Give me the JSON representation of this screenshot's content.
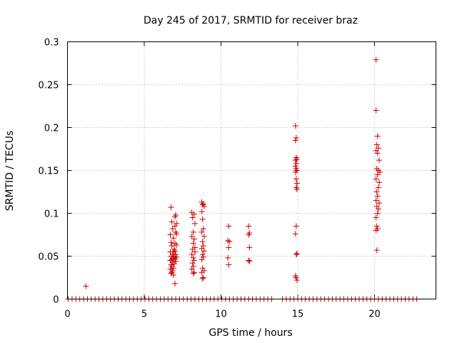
{
  "chart_data": {
    "type": "scatter",
    "title": "Day 245 of 2017, SRMTID for receiver braz",
    "xlabel": "GPS time / hours",
    "ylabel": "SRMTID / TECUs",
    "xlim": [
      0,
      24
    ],
    "ylim": [
      0,
      0.3
    ],
    "x_ticks": [
      0,
      5,
      10,
      15,
      20
    ],
    "x_tick_labels": [
      "0",
      "5",
      "10",
      "15",
      "20"
    ],
    "y_ticks": [
      0,
      0.05,
      0.1,
      0.15,
      0.2,
      0.25,
      0.3
    ],
    "y_tick_labels": [
      "0",
      "0.05",
      "0.1",
      "0.15",
      "0.2",
      "0.25",
      "0.3"
    ],
    "grid": true,
    "marker": "plus",
    "color": "#cc0000",
    "series": [
      {
        "name": "SRMTID",
        "points": [
          [
            1.2,
            0.015
          ],
          [
            6.75,
            0.107
          ],
          [
            6.8,
            0.09
          ],
          [
            6.85,
            0.082
          ],
          [
            6.7,
            0.075
          ],
          [
            6.9,
            0.071
          ],
          [
            6.75,
            0.066
          ],
          [
            6.8,
            0.062
          ],
          [
            6.95,
            0.058
          ],
          [
            6.7,
            0.055
          ],
          [
            6.85,
            0.052
          ],
          [
            6.75,
            0.05
          ],
          [
            6.9,
            0.048
          ],
          [
            6.8,
            0.046
          ],
          [
            6.7,
            0.045
          ],
          [
            6.85,
            0.043
          ],
          [
            6.95,
            0.041
          ],
          [
            6.75,
            0.04
          ],
          [
            6.8,
            0.038
          ],
          [
            6.9,
            0.036
          ],
          [
            6.7,
            0.035
          ],
          [
            6.85,
            0.033
          ],
          [
            6.8,
            0.031
          ],
          [
            6.75,
            0.03
          ],
          [
            6.9,
            0.028
          ],
          [
            7.0,
            0.085
          ],
          [
            7.05,
            0.078
          ],
          [
            7.1,
            0.076
          ],
          [
            7.0,
            0.065
          ],
          [
            7.1,
            0.063
          ],
          [
            7.0,
            0.056
          ],
          [
            7.05,
            0.052
          ],
          [
            7.0,
            0.047
          ],
          [
            7.05,
            0.044
          ],
          [
            7.0,
            0.018
          ],
          [
            7.0,
            0.096
          ],
          [
            7.05,
            0.098
          ],
          [
            7.1,
            0.088
          ],
          [
            6.95,
            0.05
          ],
          [
            7.1,
            0.049
          ],
          [
            6.9,
            0.055
          ],
          [
            8.1,
            0.101
          ],
          [
            8.25,
            0.099
          ],
          [
            8.15,
            0.095
          ],
          [
            8.3,
            0.088
          ],
          [
            8.2,
            0.078
          ],
          [
            8.1,
            0.073
          ],
          [
            8.25,
            0.07
          ],
          [
            8.2,
            0.065
          ],
          [
            8.15,
            0.058
          ],
          [
            8.3,
            0.055
          ],
          [
            8.1,
            0.052
          ],
          [
            8.2,
            0.048
          ],
          [
            8.25,
            0.045
          ],
          [
            8.15,
            0.042
          ],
          [
            8.2,
            0.038
          ],
          [
            8.1,
            0.035
          ],
          [
            8.25,
            0.031
          ],
          [
            8.2,
            0.03
          ],
          [
            8.3,
            0.06
          ],
          [
            8.75,
            0.113
          ],
          [
            8.85,
            0.111
          ],
          [
            8.8,
            0.11
          ],
          [
            8.9,
            0.108
          ],
          [
            8.75,
            0.102
          ],
          [
            8.8,
            0.093
          ],
          [
            8.85,
            0.082
          ],
          [
            8.75,
            0.078
          ],
          [
            8.9,
            0.073
          ],
          [
            8.8,
            0.067
          ],
          [
            8.85,
            0.062
          ],
          [
            8.75,
            0.059
          ],
          [
            8.9,
            0.056
          ],
          [
            8.8,
            0.052
          ],
          [
            8.85,
            0.049
          ],
          [
            8.75,
            0.046
          ],
          [
            8.8,
            0.036
          ],
          [
            8.9,
            0.033
          ],
          [
            8.75,
            0.031
          ],
          [
            8.85,
            0.025
          ],
          [
            8.8,
            0.024
          ],
          [
            10.5,
            0.085
          ],
          [
            10.45,
            0.068
          ],
          [
            10.55,
            0.067
          ],
          [
            10.5,
            0.06
          ],
          [
            10.45,
            0.048
          ],
          [
            10.5,
            0.04
          ],
          [
            11.8,
            0.085
          ],
          [
            11.85,
            0.077
          ],
          [
            11.8,
            0.075
          ],
          [
            11.85,
            0.06
          ],
          [
            11.8,
            0.045
          ],
          [
            11.85,
            0.044
          ],
          [
            14.85,
            0.202
          ],
          [
            14.9,
            0.188
          ],
          [
            14.85,
            0.185
          ],
          [
            14.9,
            0.165
          ],
          [
            14.85,
            0.162
          ],
          [
            14.95,
            0.163
          ],
          [
            14.9,
            0.158
          ],
          [
            14.85,
            0.155
          ],
          [
            14.9,
            0.152
          ],
          [
            14.95,
            0.15
          ],
          [
            14.85,
            0.148
          ],
          [
            14.9,
            0.14
          ],
          [
            14.95,
            0.135
          ],
          [
            14.9,
            0.13
          ],
          [
            14.95,
            0.128
          ],
          [
            14.9,
            0.085
          ],
          [
            14.85,
            0.076
          ],
          [
            14.95,
            0.053
          ],
          [
            14.9,
            0.052
          ],
          [
            14.85,
            0.027
          ],
          [
            14.9,
            0.025
          ],
          [
            14.95,
            0.022
          ],
          [
            20.1,
            0.279
          ],
          [
            20.1,
            0.22
          ],
          [
            20.2,
            0.19
          ],
          [
            20.15,
            0.18
          ],
          [
            20.25,
            0.176
          ],
          [
            20.1,
            0.173
          ],
          [
            20.2,
            0.17
          ],
          [
            20.3,
            0.162
          ],
          [
            20.15,
            0.152
          ],
          [
            20.25,
            0.15
          ],
          [
            20.35,
            0.148
          ],
          [
            20.2,
            0.145
          ],
          [
            20.1,
            0.14
          ],
          [
            20.3,
            0.136
          ],
          [
            20.25,
            0.13
          ],
          [
            20.15,
            0.125
          ],
          [
            20.2,
            0.12
          ],
          [
            20.1,
            0.115
          ],
          [
            20.3,
            0.112
          ],
          [
            20.15,
            0.108
          ],
          [
            20.25,
            0.105
          ],
          [
            20.2,
            0.1
          ],
          [
            20.1,
            0.095
          ],
          [
            20.15,
            0.085
          ],
          [
            20.2,
            0.082
          ],
          [
            20.1,
            0.08
          ],
          [
            20.15,
            0.057
          ]
        ],
        "baseline_y": 0,
        "baseline_x_ranges": [
          [
            0.05,
            13.5
          ],
          [
            14.0,
            22.8
          ]
        ],
        "baseline_x_step": 0.25
      }
    ]
  }
}
